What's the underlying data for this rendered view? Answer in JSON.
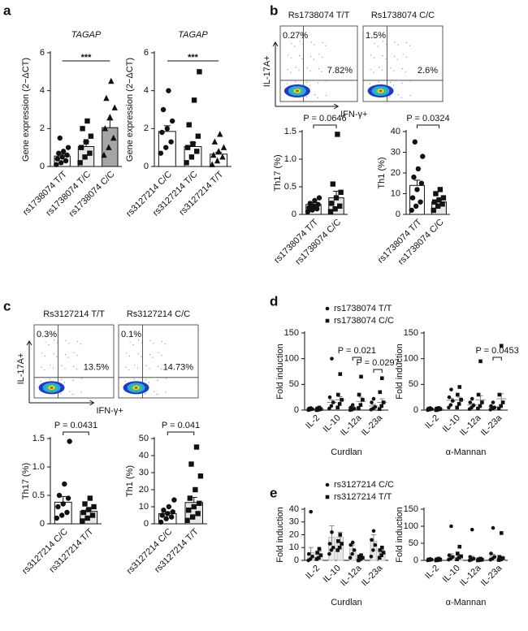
{
  "chart_data": [
    {
      "type": "bar",
      "panel": "a",
      "title": "TAGAP",
      "ylabel": "Gene expression (2−ΔCT)",
      "annotation": "***",
      "categories": [
        "rs1738074 T/T",
        "rs1738074 T/C",
        "rs1738074 C/C"
      ],
      "values": [
        0.55,
        1.05,
        2.05
      ],
      "errors": [
        0.1,
        0.25,
        0.4
      ],
      "colors": [
        "#ffffff",
        "#e6e6e6",
        "#a6a6a6"
      ],
      "markers": [
        "circle",
        "square",
        "triangle"
      ],
      "points": [
        [
          0.1,
          0.2,
          0.3,
          0.4,
          0.5,
          0.6,
          0.7,
          0.8,
          1.0,
          1.5
        ],
        [
          0.2,
          0.5,
          0.7,
          1.0,
          1.3,
          1.6,
          2.0,
          2.4
        ],
        [
          0.6,
          1.0,
          1.5,
          2.0,
          2.6,
          3.1,
          3.6,
          4.5
        ]
      ],
      "ylim": [
        0,
        6
      ],
      "yticks": [
        0,
        2,
        4,
        6
      ]
    },
    {
      "type": "bar",
      "title": "TAGAP",
      "ylabel": "Gene expression (2−ΔCT)",
      "annotation": "***",
      "categories": [
        "rs3127214 C/C",
        "rs3127214 T/C",
        "rs3127214 T/T"
      ],
      "values": [
        1.85,
        1.05,
        0.65
      ],
      "errors": [
        0.3,
        0.2,
        0.1
      ],
      "colors": [
        "#ffffff",
        "#ffffff",
        "#ffffff"
      ],
      "markers": [
        "circle",
        "square",
        "triangle"
      ],
      "points": [
        [
          0.7,
          1.0,
          1.3,
          1.8,
          2.0,
          2.4,
          3.0,
          4.0
        ],
        [
          0.2,
          0.5,
          0.8,
          1.0,
          1.2,
          1.6,
          2.2,
          3.5,
          5.0
        ],
        [
          0.1,
          0.3,
          0.5,
          0.6,
          0.8,
          1.0,
          1.3,
          1.7
        ]
      ],
      "ylim": [
        0,
        6
      ],
      "yticks": [
        0,
        2,
        4,
        6
      ]
    },
    {
      "type": "flow",
      "panel": "b",
      "title": "Rs1738074 T/T",
      "upper_left": "0.27%",
      "lower_right": "7.82%",
      "ylabel": "IL-17A+",
      "xlabel": "IFN-γ+"
    },
    {
      "type": "flow",
      "title": "Rs1738074 C/C",
      "upper_left": "1.5%",
      "lower_right": "2.6%"
    },
    {
      "type": "bar",
      "ylabel": "Th17 (%)",
      "annotation": "P = 0.0646",
      "categories": [
        "rs1738074 T/T",
        "rs1738074 C/C"
      ],
      "values": [
        0.18,
        0.3
      ],
      "errors": [
        0.03,
        0.12
      ],
      "colors": [
        "#ffffff",
        "#e6e6e6"
      ],
      "markers": [
        "circle",
        "square"
      ],
      "points": [
        [
          0.05,
          0.08,
          0.1,
          0.12,
          0.15,
          0.18,
          0.2,
          0.25,
          0.3
        ],
        [
          0.05,
          0.1,
          0.15,
          0.2,
          0.3,
          0.4,
          0.55,
          1.45
        ]
      ],
      "ylim": [
        0,
        1.5
      ],
      "yticks": [
        0,
        0.5,
        {
          "value": 1.0,
          "label": "1.0"
        },
        1.5
      ]
    },
    {
      "type": "bar",
      "ylabel": "Th1 (%)",
      "annotation": "P = 0.0324",
      "categories": [
        "rs1738074 T/T",
        "rs1738074 C/C"
      ],
      "values": [
        14,
        6
      ],
      "errors": [
        2.5,
        1
      ],
      "colors": [
        "#ffffff",
        "#e6e6e6"
      ],
      "markers": [
        "circle",
        "square"
      ],
      "points": [
        [
          2,
          4,
          6,
          8,
          12,
          15,
          18,
          22,
          28,
          35
        ],
        [
          2,
          4,
          5,
          6,
          7,
          8,
          10,
          12
        ]
      ],
      "ylim": [
        0,
        40
      ],
      "yticks": [
        0,
        10,
        20,
        30,
        40
      ]
    },
    {
      "type": "flow",
      "panel": "c",
      "title": "Rs3127214 T/T",
      "upper_left": "0.3%",
      "lower_right": "13.5%",
      "ylabel": "IL-17A+",
      "xlabel": "IFN-γ+"
    },
    {
      "type": "flow",
      "title": "Rs3127214 C/C",
      "upper_left": "0.1%",
      "lower_right": "14.73%"
    },
    {
      "type": "bar",
      "ylabel": "Th17 (%)",
      "annotation": "P = 0.0431",
      "categories": [
        "rs3127214 C/C",
        "rs3127214 T/T"
      ],
      "values": [
        0.38,
        0.22
      ],
      "errors": [
        0.1,
        0.04
      ],
      "colors": [
        "#ffffff",
        "#e6e6e6"
      ],
      "markers": [
        "circle",
        "square"
      ],
      "points": [
        [
          0.1,
          0.15,
          0.2,
          0.3,
          0.35,
          0.45,
          0.5,
          0.7,
          1.45
        ],
        [
          0.05,
          0.1,
          0.15,
          0.2,
          0.25,
          0.3,
          0.35,
          0.45
        ]
      ],
      "ylim": [
        0,
        1.5
      ],
      "yticks": [
        0,
        0.5,
        {
          "value": 1.0,
          "label": "1.0"
        },
        1.5
      ]
    },
    {
      "type": "bar",
      "ylabel": "Th1 (%)",
      "annotation": "P = 0.041",
      "categories": [
        "rs3127214 C/C",
        "rs3127214 T/T"
      ],
      "values": [
        6,
        12.5
      ],
      "errors": [
        1,
        3
      ],
      "colors": [
        "#ffffff",
        "#e6e6e6"
      ],
      "markers": [
        "circle",
        "square"
      ],
      "points": [
        [
          1,
          3,
          4,
          5,
          6,
          7,
          8,
          10,
          14
        ],
        [
          2,
          4,
          6,
          8,
          10,
          12,
          15,
          20,
          28,
          35,
          45
        ]
      ],
      "ylim": [
        0,
        50
      ],
      "yticks": [
        0,
        10,
        20,
        30,
        40,
        50
      ]
    },
    {
      "type": "dot",
      "panel": "d",
      "xlabel": "Curdlan",
      "ylabel": "Fold induction",
      "annotations": [
        "P = 0.021",
        "P = 0.0297"
      ],
      "categories": [
        "IL-2",
        "IL-10",
        "IL-12a",
        "IL-23a"
      ],
      "series": [
        {
          "name": "rs1738074 T/T",
          "marker": "circle",
          "values": [
            2,
            15,
            4,
            8
          ],
          "errors": [
            1,
            5,
            2,
            3
          ],
          "points": [
            [
              0,
              1,
              2,
              3,
              4
            ],
            [
              3,
              8,
              15,
              25,
              100
            ],
            [
              0,
              1,
              3,
              5,
              10
            ],
            [
              1,
              3,
              6,
              15,
              22
            ]
          ]
        },
        {
          "name": "rs1738074 C/C",
          "marker": "square",
          "values": [
            2,
            20,
            17,
            15
          ],
          "errors": [
            1,
            6,
            8,
            7
          ],
          "points": [
            [
              0,
              1,
              2,
              3,
              5
            ],
            [
              5,
              12,
              20,
              30,
              70
            ],
            [
              4,
              10,
              20,
              30,
              65
            ],
            [
              2,
              8,
              15,
              35,
              62
            ]
          ]
        }
      ],
      "bars": false,
      "ylim": [
        0,
        150
      ],
      "yticks": [
        0,
        50,
        100,
        150
      ]
    },
    {
      "type": "dot",
      "xlabel": "α-Mannan",
      "ylabel": "Fold induction",
      "annotations": [
        "P = 0.0453"
      ],
      "categories": [
        "IL-2",
        "IL-10",
        "IL-12a",
        "IL-23a"
      ],
      "series": [
        {
          "marker": "circle",
          "values": [
            2,
            19,
            10,
            6
          ],
          "errors": [
            1,
            4,
            3,
            2
          ],
          "points": [
            [
              0,
              1,
              2,
              3,
              4
            ],
            [
              5,
              10,
              18,
              25,
              40
            ],
            [
              2,
              5,
              9,
              15,
              22
            ],
            [
              1,
              3,
              5,
              8,
              15
            ]
          ]
        },
        {
          "marker": "square",
          "values": [
            2,
            20,
            20,
            22
          ],
          "errors": [
            1,
            5,
            8,
            10
          ],
          "points": [
            [
              0,
              1,
              2,
              3,
              4
            ],
            [
              5,
              12,
              20,
              30,
              45
            ],
            [
              3,
              8,
              15,
              30,
              95
            ],
            [
              3,
              8,
              15,
              30,
              125
            ]
          ]
        }
      ],
      "bars": false,
      "ylim": [
        0,
        150
      ],
      "yticks": [
        0,
        50,
        100,
        150
      ]
    },
    {
      "type": "dot",
      "panel": "e",
      "xlabel": "Curdlan",
      "ylabel": "Fold induction",
      "categories": [
        "IL-2",
        "IL-10",
        "IL-12a",
        "IL-23a"
      ],
      "series": [
        {
          "name": "rs3127214 C/C",
          "marker": "circle",
          "values": [
            6,
            18,
            9,
            15
          ],
          "errors": [
            4,
            9,
            3,
            5
          ],
          "points": [
            [
              0,
              1,
              3,
              5,
              38
            ],
            [
              5,
              8,
              10,
              13,
              22
            ],
            [
              2,
              5,
              8,
              12,
              14
            ],
            [
              3,
              8,
              12,
              16,
              23
            ]
          ]
        },
        {
          "name": "rs3127214 T/T",
          "marker": "square",
          "values": [
            5,
            18,
            2,
            6
          ],
          "errors": [
            2,
            4,
            1,
            2
          ],
          "points": [
            [
              1,
              2,
              4,
              6,
              9
            ],
            [
              8,
              10,
              13,
              15,
              20
            ],
            [
              0,
              1,
              2,
              3,
              4
            ],
            [
              2,
              4,
              6,
              8,
              10
            ]
          ]
        }
      ],
      "bars": true,
      "ylim": [
        0,
        40
      ],
      "yticks": [
        0,
        10,
        20,
        30,
        40
      ]
    },
    {
      "type": "dot",
      "xlabel": "α-Mannan",
      "ylabel": "Fold induction",
      "categories": [
        "IL-2",
        "IL-10",
        "IL-12a",
        "IL-23a"
      ],
      "series": [
        {
          "marker": "circle",
          "values": [
            2,
            14,
            8,
            12
          ],
          "errors": [
            1,
            5,
            4,
            6
          ],
          "points": [
            [
              0,
              1,
              2,
              3,
              4
            ],
            [
              2,
              5,
              10,
              15,
              100
            ],
            [
              0,
              2,
              5,
              10,
              90
            ],
            [
              2,
              5,
              10,
              20,
              95
            ]
          ]
        },
        {
          "marker": "square",
          "values": [
            2,
            12,
            2,
            8
          ],
          "errors": [
            1,
            4,
            1,
            4
          ],
          "points": [
            [
              0,
              1,
              2,
              3,
              5
            ],
            [
              3,
              8,
              12,
              20,
              40
            ],
            [
              0,
              1,
              2,
              3,
              5
            ],
            [
              1,
              3,
              6,
              10,
              80
            ]
          ]
        }
      ],
      "bars": true,
      "ylim": [
        0,
        150
      ],
      "yticks": [
        0,
        50,
        100,
        150
      ]
    }
  ]
}
